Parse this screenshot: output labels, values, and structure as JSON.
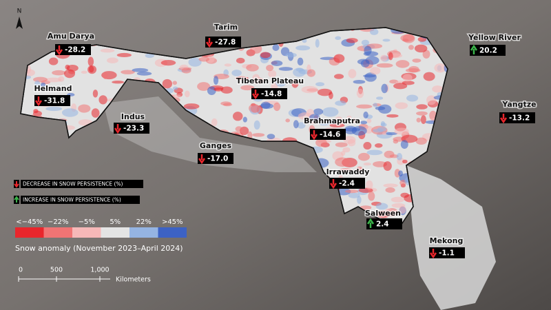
{
  "north": "N",
  "basins": [
    {
      "name": "Amu Darya",
      "value": "-28.2"
    },
    {
      "name": "Tarim",
      "value": "-27.8"
    },
    {
      "name": "Yellow River",
      "value": "20.2"
    },
    {
      "name": "Helmand",
      "value": "-31.8"
    },
    {
      "name": "Tibetan Plateau",
      "value": "-14.8"
    },
    {
      "name": "Indus",
      "value": "-23.3"
    },
    {
      "name": "Yangtze",
      "value": "-13.2"
    },
    {
      "name": "Brahmaputra",
      "value": "-14.6"
    },
    {
      "name": "Ganges",
      "value": "-17.0"
    },
    {
      "name": "Irrawaddy",
      "value": "-2.4"
    },
    {
      "name": "Salween",
      "value": "2.4"
    },
    {
      "name": "Mekong",
      "value": "-1.1"
    }
  ],
  "legend": {
    "decrease": "DECREASE IN SNOW PERSISTENCE (%)",
    "increase": "INCREASE IN SNOW PERSISTENCE (%)",
    "scale": [
      {
        "label": "<−45%",
        "color": "#e8262c"
      },
      {
        "label": "−22%",
        "color": "#f07474"
      },
      {
        "label": "−5%",
        "color": "#f6b8b8"
      },
      {
        "label": "5%",
        "color": "#e4e4e4"
      },
      {
        "label": "22%",
        "color": "#95b4e2"
      },
      {
        "label": ">45%",
        "color": "#3c62c4"
      }
    ],
    "title": "Snow anomaly (November 2023–April 2024)"
  },
  "scale_bar": {
    "ticks": [
      "0",
      "500",
      "1,000"
    ],
    "unit": "Kilometers"
  }
}
